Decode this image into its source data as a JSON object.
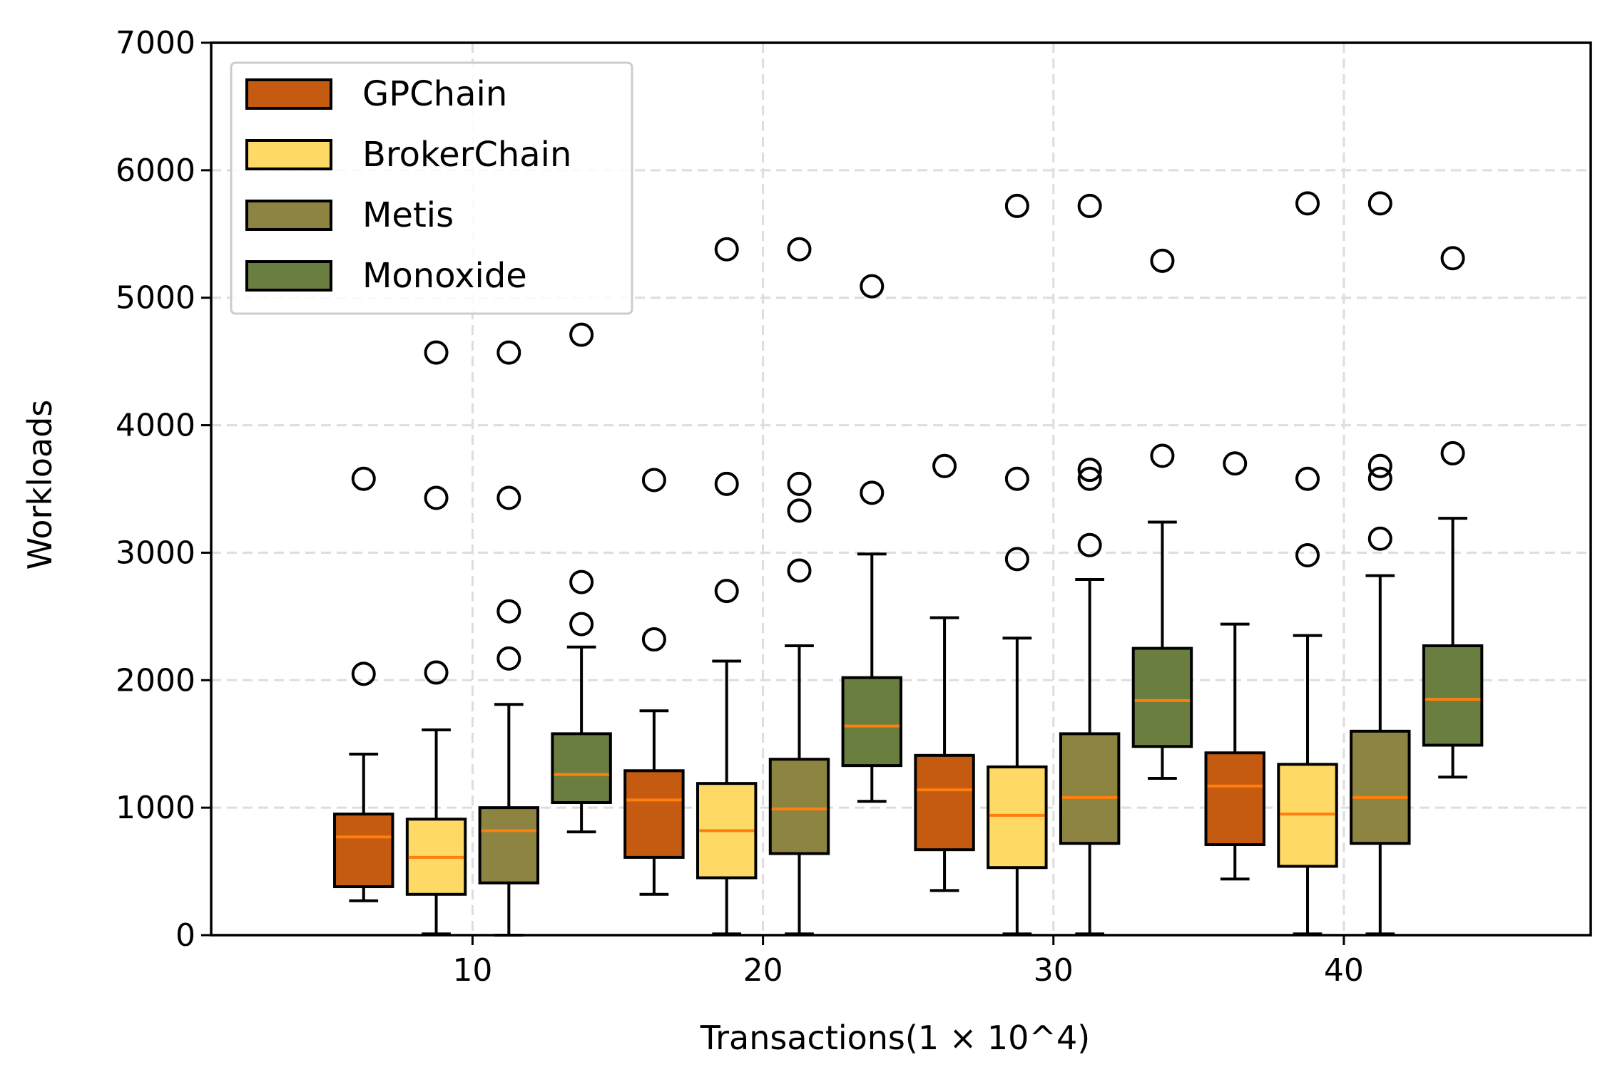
{
  "chart_data": {
    "type": "box",
    "xlabel": "Transactions(1 × 10^4)",
    "ylabel": "Workloads",
    "xlim": [
      1,
      48.5
    ],
    "ylim": [
      0,
      7000
    ],
    "xticks": [
      10,
      20,
      30,
      40
    ],
    "yticks": [
      0,
      1000,
      2000,
      3000,
      4000,
      5000,
      6000,
      7000
    ],
    "grid": true,
    "legend_position": "top-left",
    "colors": {
      "GPChain": "#c55a11",
      "BrokerChain": "#ffd966",
      "Metis": "#8c8440",
      "Monoxide": "#6a7f3f",
      "median": "#ff7f0e",
      "grid": "#dddddd"
    },
    "series": [
      {
        "name": "GPChain",
        "boxes": [
          {
            "x": 6.25,
            "whisker_low": 270,
            "q1": 380,
            "median": 770,
            "q3": 950,
            "whisker_high": 1420,
            "outliers": [
              2050,
              3580
            ]
          },
          {
            "x": 16.25,
            "whisker_low": 320,
            "q1": 610,
            "median": 1060,
            "q3": 1290,
            "whisker_high": 1760,
            "outliers": [
              2320,
              3570
            ]
          },
          {
            "x": 26.25,
            "whisker_low": 350,
            "q1": 670,
            "median": 1140,
            "q3": 1410,
            "whisker_high": 2490,
            "outliers": [
              3680
            ]
          },
          {
            "x": 36.25,
            "whisker_low": 440,
            "q1": 710,
            "median": 1170,
            "q3": 1430,
            "whisker_high": 2440,
            "outliers": [
              3700
            ]
          }
        ]
      },
      {
        "name": "BrokerChain",
        "boxes": [
          {
            "x": 8.75,
            "whisker_low": 10,
            "q1": 320,
            "median": 610,
            "q3": 910,
            "whisker_high": 1610,
            "outliers": [
              2060,
              3430,
              4570
            ]
          },
          {
            "x": 18.75,
            "whisker_low": 10,
            "q1": 450,
            "median": 820,
            "q3": 1190,
            "whisker_high": 2150,
            "outliers": [
              2700,
              3540,
              5380
            ]
          },
          {
            "x": 28.75,
            "whisker_low": 10,
            "q1": 530,
            "median": 940,
            "q3": 1320,
            "whisker_high": 2330,
            "outliers": [
              2950,
              3580,
              5720
            ]
          },
          {
            "x": 38.75,
            "whisker_low": 10,
            "q1": 540,
            "median": 950,
            "q3": 1340,
            "whisker_high": 2350,
            "outliers": [
              2980,
              3580,
              5740
            ]
          }
        ]
      },
      {
        "name": "Metis",
        "boxes": [
          {
            "x": 11.25,
            "whisker_low": 0,
            "q1": 410,
            "median": 820,
            "q3": 1000,
            "whisker_high": 1810,
            "outliers": [
              2170,
              2540,
              3430,
              4570
            ]
          },
          {
            "x": 21.25,
            "whisker_low": 10,
            "q1": 640,
            "median": 990,
            "q3": 1380,
            "whisker_high": 2270,
            "outliers": [
              2860,
              3330,
              3540,
              5380
            ]
          },
          {
            "x": 31.25,
            "whisker_low": 10,
            "q1": 720,
            "median": 1080,
            "q3": 1580,
            "whisker_high": 2790,
            "outliers": [
              3060,
              3580,
              3650,
              5720
            ]
          },
          {
            "x": 41.25,
            "whisker_low": 10,
            "q1": 720,
            "median": 1080,
            "q3": 1600,
            "whisker_high": 2820,
            "outliers": [
              3110,
              3580,
              3680,
              5740
            ]
          }
        ]
      },
      {
        "name": "Monoxide",
        "boxes": [
          {
            "x": 13.75,
            "whisker_low": 810,
            "q1": 1040,
            "median": 1260,
            "q3": 1580,
            "whisker_high": 2260,
            "outliers": [
              2440,
              2770,
              4710
            ]
          },
          {
            "x": 23.75,
            "whisker_low": 1050,
            "q1": 1330,
            "median": 1640,
            "q3": 2020,
            "whisker_high": 2990,
            "outliers": [
              3470,
              5090
            ]
          },
          {
            "x": 33.75,
            "whisker_low": 1230,
            "q1": 1480,
            "median": 1840,
            "q3": 2250,
            "whisker_high": 3240,
            "outliers": [
              3760,
              5290
            ]
          },
          {
            "x": 43.75,
            "whisker_low": 1240,
            "q1": 1490,
            "median": 1850,
            "q3": 2270,
            "whisker_high": 3270,
            "outliers": [
              3780,
              5310
            ]
          }
        ]
      }
    ]
  }
}
